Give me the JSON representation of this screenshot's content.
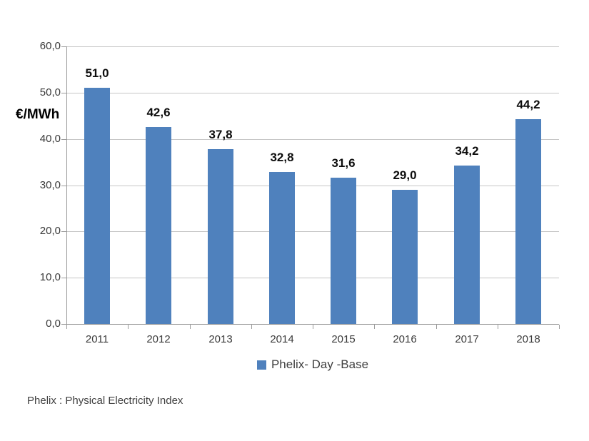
{
  "chart_data": {
    "type": "bar",
    "categories": [
      "2011",
      "2012",
      "2013",
      "2014",
      "2015",
      "2016",
      "2017",
      "2018"
    ],
    "values": [
      51.0,
      42.6,
      37.8,
      32.8,
      31.6,
      29.0,
      34.2,
      44.2
    ],
    "value_labels": [
      "51,0",
      "42,6",
      "37,8",
      "32,8",
      "31,6",
      "29,0",
      "34,2",
      "44,2"
    ],
    "title": "",
    "xlabel": "",
    "ylabel": "€/MWh",
    "ylim": [
      0,
      60
    ],
    "ytick_step": 10,
    "ytick_labels": [
      "0,0",
      "10,0",
      "20,0",
      "30,0",
      "40,0",
      "50,0",
      "60,0"
    ],
    "grid": true,
    "legend_position": "bottom",
    "bar_color": "#4f81bd",
    "series": [
      {
        "name": "Phelix- Day -Base",
        "values": [
          51.0,
          42.6,
          37.8,
          32.8,
          31.6,
          29.0,
          34.2,
          44.2
        ]
      }
    ]
  },
  "legend": {
    "label": "Phelix- Day -Base",
    "swatch_color": "#4f81bd"
  },
  "footer": {
    "note": "Phelix : Physical Electricity Index"
  }
}
